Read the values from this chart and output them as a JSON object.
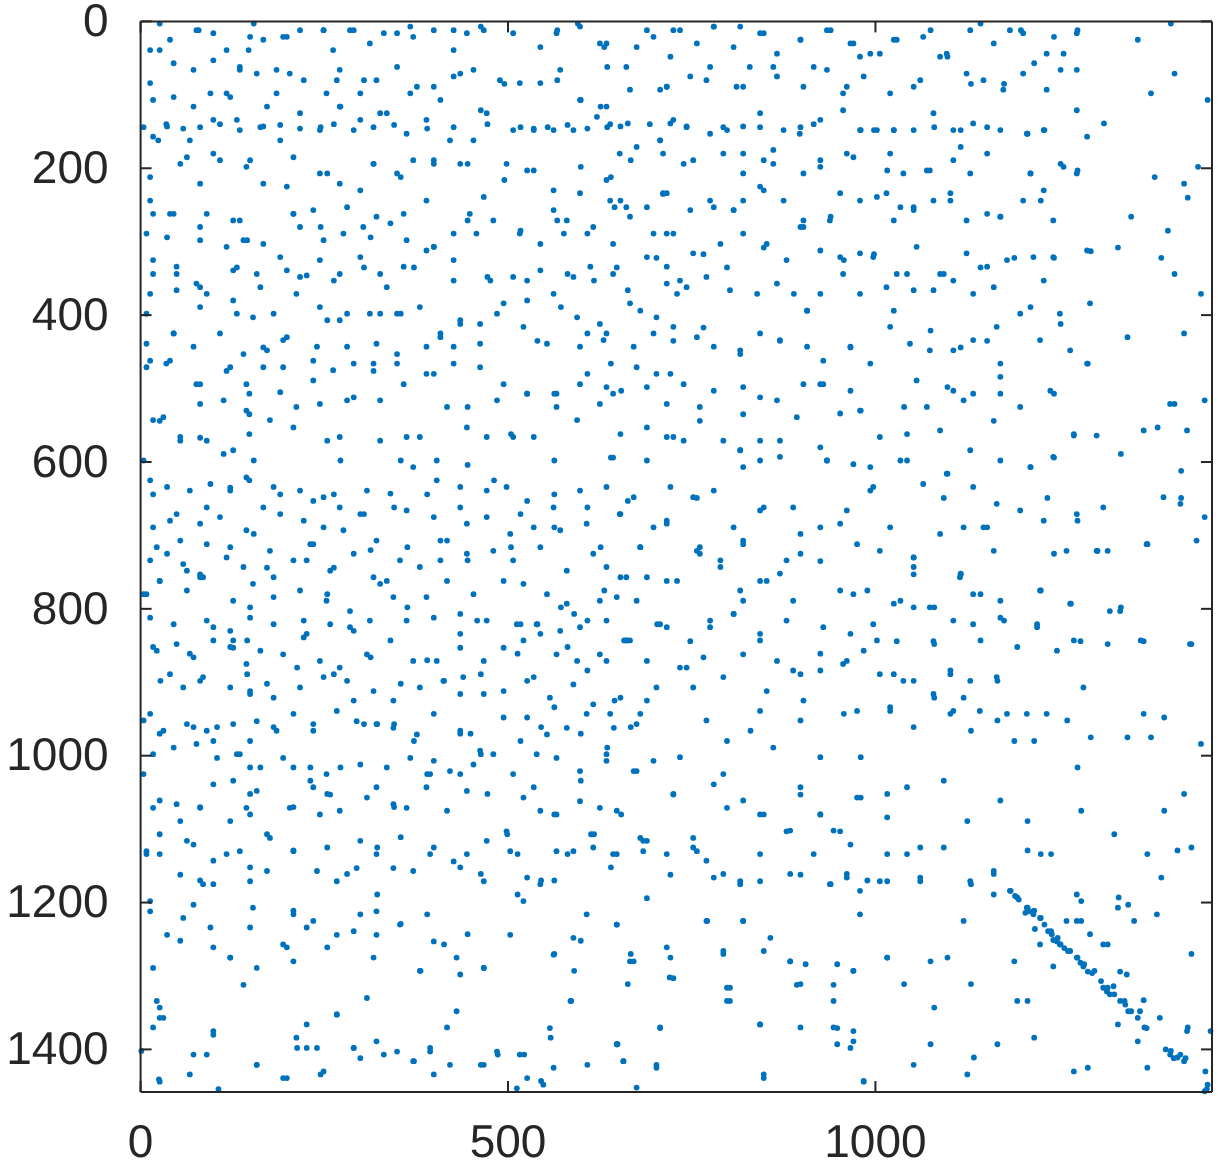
{
  "chart_data": {
    "type": "scatter",
    "color": "#0072bd",
    "marker": "circle",
    "xlim": [
      0,
      1458
    ],
    "ylim": [
      1458,
      0
    ],
    "xticks": [
      0,
      500,
      1000
    ],
    "yticks": [
      0,
      200,
      400,
      600,
      800,
      1000,
      1200,
      1400
    ],
    "x": [
      26,
      79,
      154,
      147,
      199,
      249,
      285,
      331,
      367,
      426,
      463,
      567,
      595,
      631,
      13,
      45,
      99,
      135,
      185,
      267,
      304,
      376,
      435,
      495,
      567,
      635,
      4,
      35,
      58,
      81,
      108,
      135,
      163,
      190,
      217,
      245,
      263,
      290,
      317,
      345,
      390,
      426,
      472,
      517,
      535,
      554,
      581,
      608,
      635,
      663,
      17,
      72,
      122,
      172,
      272,
      326,
      408,
      463,
      599,
      626,
      24,
      63,
      99,
      149,
      208,
      254,
      317,
      354,
      399,
      445,
      495,
      535,
      599,
      640,
      667,
      13,
      40,
      81,
      126,
      145,
      208,
      245,
      281,
      313,
      358,
      399,
      445,
      517,
      567,
      608,
      645,
      17,
      49,
      81,
      131,
      163,
      199,
      226,
      263,
      304,
      335,
      372,
      426,
      472,
      526,
      581,
      617,
      663,
      8,
      45,
      81,
      131,
      167,
      199,
      254,
      281,
      326,
      354,
      408,
      435,
      485,
      540,
      572,
      608,
      640,
      8,
      35,
      81,
      117,
      148,
      148,
      190,
      235,
      281,
      317,
      358,
      399,
      445,
      485,
      526,
      563,
      608,
      654,
      4,
      26,
      54,
      81,
      113,
      148,
      154,
      208,
      254,
      272,
      326,
      354,
      403,
      445,
      504,
      563,
      640,
      17,
      49,
      90,
      122,
      148,
      190,
      235,
      263,
      304,
      345,
      390,
      435,
      481,
      517,
      563,
      608,
      663,
      22,
      54,
      81,
      122,
      154,
      172,
      231,
      263,
      313,
      363,
      408,
      445,
      504,
      563,
      626,
      634,
      689,
      734,
      780,
      816,
      848,
      898,
      939,
      970,
      1025,
      1075,
      1143,
      1198,
      1243,
      1275,
      1357,
      1402,
      661,
      716,
      770,
      820,
      861,
      916,
      961,
      993,
      1052,
      1098,
      1130,
      1175,
      1216,
      1252,
      1375,
      1407,
      1452,
      639,
      693,
      743,
      793,
      843,
      898,
      916,
      980,
      998,
      1025,
      1080,
      1116,
      1152,
      1207,
      1230,
      1311,
      652,
      707,
      752,
      820,
      861,
      925,
      970,
      1016,
      1070,
      1116,
      1152,
      1211,
      1252,
      1275,
      1380,
      1420,
      1439,
      639,
      661,
      711,
      775,
      807,
      848,
      898,
      939,
      1002,
      1025,
      1052,
      1102,
      1170,
      1225,
      1348,
      1398,
      1425,
      648,
      702,
      734,
      766,
      798,
      848,
      889,
      957,
      998,
      1043,
      1093,
      1143,
      1189,
      1243,
      1293,
      1330,
      1389,
      1407,
      1443,
      634,
      680,
      725,
      766,
      816,
      870,
      907,
      966,
      1025,
      1075,
      1116,
      1152,
      1211,
      1252,
      1289,
      1343,
      1420,
      643,
      689,
      716,
      761,
      820,
      866,
      925,
      980,
      1039,
      1098,
      1120,
      1170,
      1243,
      1270,
      1384,
      1407,
      1448,
      643,
      689,
      739,
      816,
      843,
      870,
      934,
      993,
      1043,
      1098,
      1170,
      1211,
      1243,
      1334,
      1416,
      652,
      716,
      757,
      807,
      848,
      898,
      961,
      993,
      1052,
      1093,
      1120,
      1152,
      1234,
      1275,
      1302,
      1316,
      1370,
      1416,
      1448,
      661,
      761,
      820,
      925,
      1052,
      1116,
      1161,
      1243,
      4,
      26,
      63,
      81,
      99,
      122,
      145,
      149,
      181,
      226,
      254,
      285,
      335,
      363,
      408,
      435,
      458,
      517,
      540,
      572,
      590,
      608,
      631,
      658,
      17,
      40,
      67,
      81,
      104,
      126,
      145,
      149,
      172,
      213,
      226,
      263,
      290,
      313,
      354,
      390,
      413,
      435,
      463,
      513,
      535,
      581,
      608,
      645,
      4,
      26,
      72,
      99,
      131,
      149,
      149,
      181,
      208,
      235,
      272,
      304,
      322,
      345,
      372,
      399,
      435,
      449,
      463,
      517,
      545,
      563,
      599,
      635,
      667,
      4,
      26,
      54,
      81,
      126,
      149,
      149,
      208,
      231,
      254,
      308,
      345,
      390,
      435,
      472,
      499,
      535,
      563,
      599,
      617,
      654,
      8,
      26,
      63,
      99,
      149,
      172,
      208,
      254,
      281,
      322,
      354,
      394,
      435,
      463,
      513,
      545,
      581,
      613,
      640,
      13,
      54,
      81,
      99,
      122,
      149,
      208,
      226,
      254,
      299,
      322,
      354,
      390,
      413,
      445,
      513,
      563,
      586,
      599,
      667,
      17,
      99,
      158,
      199,
      208,
      308,
      267,
      317,
      381,
      435,
      467,
      563,
      590,
      663,
      17,
      26,
      31,
      99,
      72,
      90,
      158,
      199,
      213,
      226,
      245,
      290,
      331,
      372,
      394,
      417,
      463,
      486,
      522,
      545,
      558,
      608,
      649,
      106,
      25,
      1,
      634,
      680,
      716,
      761,
      789,
      820,
      843,
      870,
      898,
      952,
      989,
      1025,
      1052,
      1080,
      1116,
      1143,
      1175,
      1225,
      1266,
      1302,
      1334,
      1370,
      634,
      661,
      707,
      743,
      775,
      807,
      843,
      866,
      898,
      925,
      961,
      1002,
      1025,
      1052,
      1080,
      1102,
      1120,
      1143,
      1166,
      1193,
      1220,
      1270,
      1316,
      1361,
      1430,
      1443,
      639,
      675,
      702,
      734,
      770,
      798,
      830,
      861,
      898,
      925,
      957,
      980,
      1020,
      1052,
      1080,
      1102,
      1130,
      1166,
      1189,
      1216,
      1261,
      1293,
      1343,
      1375,
      1393,
      634,
      675,
      725,
      752,
      793,
      820,
      843,
      884,
      898,
      925,
      943,
      966,
      980,
      1016,
      1043,
      1061,
      1093,
      1125,
      1170,
      1207,
      1225,
      1275,
      1280,
      1325,
      1370,
      1393,
      1430,
      1420,
      643,
      684,
      716,
      770,
      793,
      816,
      843,
      884,
      916,
      939,
      961,
      989,
      1016,
      1043,
      1061,
      1093,
      1130,
      1161,
      1207,
      1239,
      1280,
      1330,
      1389,
      1411,
      648,
      666,
      716,
      720,
      770,
      793,
      820,
      857,
      884,
      898,
      948,
      970,
      1016,
      1039,
      1075,
      1098,
      1120,
      1130,
      1161,
      1189,
      1207,
      1280,
      1316,
      1352,
      1430,
      648,
      657,
      675,
      702,
      707,
      802,
      802,
      843,
      848,
      898,
      943,
      948,
      970,
      984,
      1052,
      1075,
      1080,
      1125,
      1134,
      1166,
      1193,
      1216,
      1270,
      1289,
      1330,
      1357,
      1370,
      1425,
      1456,
      1184,
      1193,
      1207,
      1216,
      1239,
      1248,
      1252,
      1275,
      1284,
      1298,
      1316,
      1325,
      1339,
      1348,
      1366,
      1402,
      1411,
      1420,
      1452,
      1448,
      1230,
      1262,
      1307,
      1357,
      1225,
      1183,
      1190,
      1195,
      1206,
      1210,
      1215,
      1204,
      1224,
      1217,
      1235,
      1240,
      1242,
      1247,
      1251,
      1257,
      1265,
      1274,
      1279,
      1283,
      1289,
      1295,
      1310,
      1315,
      1319,
      1324,
      1333,
      1340,
      1344,
      1369,
      1395,
      1401,
      1406,
      1415,
      1422,
      1449,
      1451,
      1224,
      1242,
      1260,
      1274,
      1292,
      1310,
      1333,
      1342,
      1365,
      1360,
      1387,
      1424,
      1383,
      1331,
      1344,
      1274,
      1161,
      1129,
      1061,
      1006,
      13,
      36,
      67,
      95,
      122,
      144,
      181,
      217,
      249,
      271,
      308,
      340,
      371,
      403,
      435,
      471,
      498,
      526,
      562,
      598,
      634,
      671,
      698,
      17,
      40,
      81,
      108,
      144,
      167,
      190,
      222,
      249,
      276,
      299,
      321,
      362,
      399,
      444,
      471,
      503,
      535,
      571,
      607,
      653,
      680,
      13,
      36,
      58,
      90,
      117,
      140,
      176,
      208,
      235,
      258,
      290,
      317,
      353,
      380,
      417,
      444,
      480,
      507,
      544,
      580,
      616,
      653,
      689,
      8,
      26,
      63,
      85,
      126,
      153,
      181,
      217,
      253,
      285,
      326,
      344,
      389,
      417,
      453,
      494,
      521,
      553,
      580,
      625,
      648,
      675,
      13,
      45,
      90,
      122,
      149,
      181,
      222,
      258,
      290,
      312,
      362,
      399,
      435,
      471,
      512,
      539,
      571,
      598,
      634,
      666,
      703,
      22,
      49,
      72,
      99,
      126,
      144,
      163,
      194,
      222,
      244,
      271,
      308,
      340,
      371,
      403,
      435,
      467,
      494,
      521,
      544,
      566,
      594,
      625,
      662,
      689,
      27,
      58,
      85,
      122,
      149,
      181,
      217,
      249,
      281,
      317,
      344,
      380,
      412,
      439,
      467,
      494,
      526,
      557,
      589,
      616,
      653,
      689,
      13,
      31,
      63,
      90,
      126,
      158,
      185,
      208,
      235,
      267,
      294,
      321,
      344,
      376,
      399,
      435,
      462,
      494,
      526,
      553,
      580,
      607,
      644,
      680,
      17,
      45,
      76,
      104,
      135,
      163,
      194,
      231,
      253,
      299,
      335,
      367,
      394,
      421,
      453,
      480,
      507,
      539,
      566,
      598,
      634,
      671,
      698,
      725,
      761,
      793,
      816,
      843,
      893,
      925,
      952,
      979,
      1006,
      1043,
      1070,
      1088,
      1129,
      1161,
      1197,
      1270,
      1301,
      1365,
      1401,
      1424,
      721,
      752,
      780,
      820,
      843,
      870,
      888,
      934,
      970,
      997,
      1034,
      1065,
      1097,
      1133,
      1165,
      1211,
      1242,
      1274,
      1310,
      1392,
      1415,
      716,
      757,
      789,
      820,
      852,
      879,
      925,
      952,
      975,
      1006,
      1020,
      1052,
      1088,
      1115,
      1147,
      1197,
      1229,
      1260,
      1301,
      1369,
      1437,
      730,
      816,
      888,
      970,
      1034,
      1074,
      1133,
      1170,
      1224,
      1265,
      1319,
      716,
      748,
      775,
      807,
      843,
      879,
      929,
      966,
      997,
      1029,
      1052,
      1079,
      1106,
      1133,
      1170,
      1220,
      1247,
      1279,
      1333,
      1365,
      1428,
      734,
      766,
      793,
      820,
      852,
      888,
      925,
      956,
      984,
      1006,
      1038,
      1079,
      1102,
      1129,
      1165,
      1179,
      1233,
      1283,
      1365,
      752,
      843,
      902,
      975,
      1020,
      1106,
      1142,
      1206,
      26,
      40,
      76,
      99,
      117,
      149,
      167,
      194,
      217,
      249,
      262,
      290,
      312,
      349,
      371,
      399,
      426,
      444,
      467,
      507,
      544,
      566,
      598,
      625,
      675,
      698,
      721,
      13,
      45,
      72,
      95,
      117,
      135,
      158,
      185,
      203,
      222,
      253,
      271,
      299,
      321,
      349,
      367,
      399,
      426,
      453,
      489,
      516,
      544,
      571,
      598,
      634,
      666,
      707,
      17,
      36,
      67,
      99,
      131,
      167,
      190,
      217,
      244,
      271,
      299,
      335,
      362,
      389,
      421,
      453,
      471,
      507,
      535,
      562,
      589,
      621,
      653,
      675,
      707,
      725,
      13,
      54,
      81,
      108,
      144,
      167,
      199,
      244,
      271,
      299,
      317,
      349,
      371,
      399,
      435,
      467,
      498,
      526,
      562,
      598,
      634,
      653,
      689,
      716,
      17,
      45,
      90,
      135,
      208,
      235,
      321,
      389,
      448,
      562,
      580,
      666,
      8,
      36,
      81,
      117,
      140,
      167,
      217,
      249,
      276,
      303,
      340,
      362,
      399,
      426,
      457,
      480,
      516,
      544,
      576,
      616,
      643,
      698,
      725,
      17,
      49,
      76,
      126,
      158,
      190,
      217,
      244,
      271,
      299,
      326,
      358,
      389,
      426,
      476,
      507,
      544,
      589,
      612,
      643,
      689,
      716,
      13,
      49,
      90,
      126,
      153,
      181,
      212,
      244,
      271,
      312,
      349,
      380,
      408,
      435,
      462,
      494,
      526,
      562,
      594,
      625,
      666,
      702,
      730,
      8,
      45,
      72,
      108,
      140,
      172,
      194,
      240,
      281,
      321,
      349,
      389,
      426,
      462,
      521,
      553,
      598,
      630,
      671,
      698,
      13,
      40,
      76,
      122,
      144,
      167,
      194,
      235,
      262,
      290,
      317,
      349,
      389,
      426,
      462,
      494,
      526,
      566,
      598,
      634,
      675,
      702,
      17,
      54,
      81,
      113,
      144,
      176,
      212,
      244,
      271,
      290,
      326,
      362,
      380,
      417,
      444,
      471,
      507,
      535,
      566,
      594,
      625,
      653,
      689,
      716,
      31,
      90,
      126,
      725,
      757,
      780,
      807,
      843,
      866,
      898,
      934,
      966,
      979,
      1006,
      1029,
      1065,
      1097,
      1129,
      1161,
      1183,
      1201,
      1233,
      1256,
      1274,
      716,
      748,
      775,
      811,
      829,
      866,
      902,
      934,
      956,
      984,
      1020,
      1061,
      1088,
      1124,
      1147,
      1174,
      1201,
      1233,
      1274,
      1274,
      721,
      743,
      775,
      798,
      820,
      843,
      875,
      897,
      925,
      956,
      979,
      1002,
      1025,
      1052,
      1079,
      1106,
      1133,
      1170,
      1206,
      1229,
      1288,
      711,
      739,
      793,
      820,
      848,
      861,
      902,
      925,
      961,
      1020,
      1038,
      1074,
      1106,
      1129,
      1211,
      1229,
      1256,
      1274,
      711,
      748,
      780,
      807,
      820,
      843,
      875,
      902,
      938,
      952,
      979,
      1015,
      1034,
      1052,
      1079,
      1102,
      1124,
      1152,
      1170,
      1201,
      1242,
      716,
      752,
      789,
      820,
      852,
      879,
      902,
      925,
      952,
      979,
      997,
      1029,
      1056,
      1088,
      1124,
      1152,
      1179,
      1215,
      1242,
      1288,
      716,
      743,
      770,
      802,
      839,
      866,
      907,
      925,
      956,
      979,
      1015,
      1052,
      1079,
      1106,
      1133,
      1161,
      1197,
      1229,
      1251,
      1292,
      725,
      757,
      780,
      816,
      843,
      870,
      907,
      929,
      966,
      993,
      1020,
      1047,
      1074,
      1106,
      1133,
      1165,
      1170,
      1224,
      1265,
      1288,
      721,
      739,
      780,
      820,
      843,
      902,
      929,
      966,
      1056,
      1106,
      1133,
      1170,
      1238,
      17,
      49,
      81,
      99,
      122,
      144,
      158,
      176,
      203,
      235,
      244,
      258,
      271,
      299,
      321,
      344,
      362,
      389,
      417,
      444,
      471,
      498,
      521,
      544,
      566,
      598,
      625,
      648,
      680,
      689,
      725,
      752,
      780,
      798,
      848,
      879,
      898,
      925,
      952,
      975,
      1016,
      8,
      26,
      54,
      72,
      85,
      117,
      135,
      149,
      172,
      208,
      240,
      267,
      294,
      321,
      344,
      371,
      399,
      426,
      444,
      467,
      503,
      526,
      544,
      566,
      589,
      616,
      648,
      684,
      721,
      757,
      780,
      816,
      843,
      898,
      938,
      961,
      979,
      1016,
      13,
      36,
      58,
      72,
      95,
      122,
      140,
      153,
      194,
      208,
      235,
      267,
      290,
      321,
      321,
      353,
      380,
      399,
      430,
      467,
      503,
      521,
      562,
      589,
      607,
      648,
      671,
      689,
      721,
      725,
      771,
      793,
      820,
      848,
      884,
      905,
      943,
      970,
      979,
      1016,
      22,
      26,
      99,
      212,
      226,
      240,
      267,
      290,
      321,
      349,
      371,
      394,
      421,
      430,
      467,
      485,
      516,
      526,
      548,
      557,
      562,
      585,
      648,
      657,
      702,
      707,
      798,
      798,
      843,
      848,
      893,
      943,
      948,
      970,
      966,
      984,
      67,
      26,
      158,
      194,
      249,
      299,
      399,
      512
    ],
    "values": [
      3,
      12,
      3,
      39,
      21,
      12,
      12,
      16,
      7,
      12,
      7,
      12,
      3,
      35,
      39,
      57,
      53,
      66,
      66,
      80,
      80,
      89,
      71,
      85,
      80,
      62,
      144,
      140,
      146,
      144,
      140,
      148,
      144,
      141,
      146,
      144,
      140,
      148,
      144,
      141,
      146,
      144,
      140,
      144,
      146,
      144,
      141,
      146,
      144,
      139,
      107,
      116,
      103,
      116,
      116,
      125,
      107,
      121,
      107,
      116,
      162,
      185,
      180,
      189,
      185,
      207,
      194,
      212,
      189,
      194,
      216,
      203,
      198,
      212,
      189,
      244,
      262,
      280,
      271,
      298,
      262,
      280,
      253,
      294,
      262,
      307,
      271,
      285,
      271,
      289,
      253,
      325,
      344,
      362,
      335,
      362,
      339,
      346,
      353,
      335,
      362,
      335,
      353,
      348,
      353,
      344,
      353,
      366,
      398,
      425,
      389,
      398,
      444,
      430,
      407,
      398,
      398,
      398,
      430,
      412,
      398,
      435,
      389,
      425,
      466,
      471,
      466,
      494,
      476,
      507,
      535,
      505,
      489,
      516,
      476,
      494,
      480,
      525,
      516,
      507,
      507,
      480,
      503,
      598,
      544,
      571,
      567,
      589,
      562,
      598,
      553,
      571,
      598,
      571,
      598,
      598,
      604,
      562,
      598,
      594,
      644,
      671,
      662,
      635,
      625,
      644,
      653,
      644,
      671,
      662,
      644,
      662,
      625,
      671,
      644,
      662,
      653,
      716,
      707,
      753,
      716,
      698,
      744,
      712,
      744,
      720,
      716,
      707,
      734,
      716,
      689,
      716,
      30,
      12,
      12,
      7,
      7,
      16,
      25,
      12,
      30,
      25,
      12,
      3,
      12,
      21,
      12,
      25,
      3,
      62,
      89,
      80,
      89,
      62,
      62,
      89,
      44,
      89,
      48,
      85,
      85,
      57,
      66,
      98,
      71,
      107,
      140,
      140,
      144,
      144,
      144,
      144,
      140,
      148,
      148,
      148,
      144,
      148,
      144,
      153,
      148,
      139,
      180,
      162,
      189,
      180,
      194,
      189,
      185,
      203,
      203,
      171,
      180,
      207,
      194,
      203,
      212,
      221,
      198,
      244,
      253,
      235,
      244,
      257,
      230,
      280,
      266,
      239,
      271,
      253,
      244,
      266,
      244,
      266,
      285,
      240,
      335,
      322,
      353,
      317,
      335,
      308,
      371,
      325,
      317,
      344,
      344,
      335,
      322,
      322,
      313,
      308,
      322,
      344,
      371,
      425,
      394,
      435,
      417,
      448,
      435,
      394,
      444,
      394,
      421,
      444,
      435,
      389,
      412,
      466,
      430,
      425,
      507,
      498,
      521,
      544,
      535,
      516,
      494,
      530,
      525,
      498,
      516,
      507,
      507,
      562,
      553,
      521,
      516,
      594,
      598,
      571,
      584,
      598,
      571,
      598,
      607,
      598,
      616,
      598,
      607,
      594,
      589,
      612,
      671,
      680,
      649,
      689,
      662,
      698,
      666,
      639,
      730,
      649,
      689,
      689,
      649,
      680,
      721,
      721,
      712,
      649,
      675,
      757,
      725,
      712,
      735,
      753,
      753,
      721,
      725,
      780,
      762,
      748,
      757,
      825,
      852,
      843,
      798,
      757,
      734,
      780,
      825,
      762,
      798,
      734,
      834,
      816,
      821,
      821,
      798,
      807,
      816,
      775,
      843,
      852,
      889,
      861,
      898,
      961,
      843,
      889,
      916,
      902,
      880,
      834,
      889,
      925,
      866,
      902,
      870,
      898,
      916,
      889,
      861,
      893,
      852,
      884,
      925,
      952,
      970,
      961,
      980,
      998,
      980,
      1016,
      961,
      1016,
      966,
      1016,
      957,
      957,
      957,
      980,
      1007,
      970,
      970,
      998,
      980,
      961,
      934,
      970,
      989,
      961,
      1025,
      1061,
      1089,
      1070,
      1034,
      1052,
      1080,
      1070,
      1034,
      1052,
      1057,
      1070,
      1025,
      1025,
      1052,
      1107,
      1043,
      1080,
      1034,
      1107,
      1080,
      1134,
      1107,
      1116,
      1143,
      1152,
      1107,
      1129,
      1125,
      1161,
      1125,
      1111,
      1134,
      1152,
      1161,
      1134,
      1170,
      1134,
      1107,
      1152,
      1198,
      1252,
      1170,
      1175,
      1275,
      1234,
      1211,
      1234,
      1261,
      1216,
      1189,
      1229,
      1216,
      1257,
      1243,
      1189,
      1170,
      1334,
      1252,
      1270,
      1289,
      1261,
      1289,
      1261,
      1280,
      1330,
      1352,
      1275,
      1293,
      1298,
      1289,
      1270,
      1293,
      1311,
      1370,
      1343,
      1357,
      1375,
      1407,
      1407,
      1421,
      1439,
      1398,
      1366,
      1434,
      1398,
      1407,
      1416,
      1398,
      1370,
      1421,
      1407,
      1407,
      1443,
      1384,
      1421,
      1393,
      1454,
      1441,
      1402,
      743,
      716,
      762,
      716,
      743,
      789,
      762,
      752,
      725,
      775,
      775,
      793,
      743,
      798,
      752,
      780,
      816,
      775,
      793,
      721,
      798,
      712,
      871,
      843,
      821,
      880,
      825,
      807,
      843,
      871,
      889,
      861,
      871,
      843,
      889,
      898,
      848,
      884,
      921,
      843,
      898,
      852,
      821,
      843,
      848,
      843,
      848,
      984,
      943,
      957,
      907,
      1002,
      952,
      980,
      966,
      989,
      952,
      1002,
      943,
      1002,
      934,
      961,
      921,
      943,
      966,
      952,
      980,
      980,
      952,
      975,
      975,
      975,
      948,
      1007,
      1021,
      1052,
      1125,
      1025,
      1061,
      1080,
      1102,
      1043,
      1080,
      1102,
      1121,
      1057,
      1052,
      1043,
      1125,
      1034,
      1089,
      1061,
      1089,
      1134,
      1016,
      1075,
      1107,
      1134,
      1075,
      1125,
      1052,
      1134,
      1116,
      1134,
      1143,
      1161,
      1175,
      1134,
      1161,
      1134,
      1175,
      1161,
      1170,
      1134,
      1134,
      1166,
      1125,
      1175,
      1161,
      1129,
      1134,
      1198,
      1207,
      1166,
      1129,
      1230,
      1280,
      1261,
      1302,
      1225,
      1270,
      1225,
      1248,
      1280,
      1311,
      1284,
      1293,
      1275,
      1311,
      1280,
      1275,
      1225,
      1311,
      1189,
      1280,
      1334,
      1225,
      1257,
      1225,
      1270,
      1393,
      1416,
      1452,
      1421,
      1370,
      1316,
      1334,
      1366,
      1439,
      1370,
      1370,
      1393,
      1389,
      1443,
      1421,
      1393,
      1343,
      1434,
      1411,
      1393,
      1334,
      1384,
      1430,
      1425,
      1366,
      1389,
      1425,
      1370,
      1375,
      1184,
      1193,
      1207,
      1211,
      1239,
      1248,
      1257,
      1275,
      1284,
      1293,
      1316,
      1325,
      1334,
      1348,
      1370,
      1402,
      1411,
      1416,
      1448,
      1457,
      1230,
      1266,
      1307,
      1357,
      1221,
      1184,
      1191,
      1196,
      1207,
      1212,
      1216,
      1214,
      1221,
      1236,
      1239,
      1243,
      1251,
      1253,
      1257,
      1262,
      1266,
      1275,
      1282,
      1287,
      1294,
      1296,
      1316,
      1321,
      1325,
      1314,
      1334,
      1339,
      1348,
      1371,
      1400,
      1407,
      1412,
      1407,
      1412,
      1430,
      1454,
      1257,
      1287,
      1225,
      1225,
      1243,
      1257,
      1294,
      1298,
      1333,
      1348,
      1357,
      1375,
      1216,
      1193,
      1203,
      1189,
      1157,
      1171,
      1171,
      1171,
      625,
      634,
      639,
      630,
      639,
      621,
      634,
      639,
      648,
      662,
      639,
      643,
      607,
      625,
      634,
      639,
      634,
      653,
      662,
      639,
      634,
      648,
      689,
      689,
      680,
      684,
      675,
      693,
      662,
      671,
      680,
      689,
      693,
      671,
      707,
      666,
      675,
      684,
      675,
      698,
      689,
      693,
      684,
      671,
      716,
      734,
      725,
      739,
      712,
      730,
      743,
      721,
      734,
      712,
      748,
      725,
      757,
      734,
      743,
      707,
      725,
      721,
      734,
      716,
      748,
      725,
      757,
      757,
      780,
      762,
      775,
      757,
      789,
      766,
      784,
      775,
      789,
      803,
      766,
      784,
      784,
      762,
      780,
      762,
      766,
      780,
      793,
      789,
      784,
      789,
      812,
      821,
      816,
      830,
      812,
      821,
      816,
      821,
      830,
      816,
      816,
      812,
      807,
      816,
      821,
      821,
      830,
      825,
      816,
      843,
      821,
      857,
      848,
      866,
      843,
      853,
      875,
      857,
      862,
      839,
      871,
      880,
      862,
      843,
      871,
      871,
      853,
      871,
      853,
      843,
      834,
      862,
      871,
      862,
      843,
      871,
      898,
      907,
      893,
      907,
      912,
      921,
      907,
      893,
      898,
      912,
      925,
      907,
      898,
      893,
      916,
      912,
      898,
      921,
      903,
      930,
      921,
      925,
      943,
      966,
      957,
      966,
      957,
      953,
      966,
      943,
      957,
      939,
      953,
      957,
      962,
      971,
      943,
      966,
      993,
      948,
      948,
      971,
      962,
      943,
      962,
      943,
      998,
      989,
      984,
      1003,
      998,
      1016,
      1003,
      1016,
      1025,
      1012,
      1016,
      1003,
      1025,
      1021,
      1012,
      998,
      1025,
      998,
      1003,
      1021,
      998,
      1021,
      1007,
      566,
      525,
      571,
      584,
      571,
      539,
      580,
      534,
      530,
      566,
      562,
      525,
      557,
      584,
      544,
      525,
      564,
      564,
      557,
      521,
      557,
      634,
      648,
      639,
      607,
      666,
      593,
      662,
      598,
      603,
      634,
      598,
      630,
      616,
      634,
      657,
      607,
      593,
      671,
      662,
      648,
      657,
      684,
      721,
      734,
      707,
      762,
      734,
      689,
      684,
      712,
      721,
      689,
      730,
      698,
      757,
      689,
      666,
      680,
      721,
      721,
      712,
      707,
      762,
      775,
      789,
      780,
      789,
      798,
      780,
      789,
      775,
      793,
      803,
      825,
      844,
      816,
      807,
      834,
      816,
      825,
      834,
      821,
      844,
      798,
      844,
      816,
      821,
      812,
      825,
      857,
      844,
      803,
      844,
      848,
      880,
      866,
      893,
      862,
      912,
      884,
      884,
      875,
      857,
      889,
      898,
      916,
      889,
      898,
      893,
      943,
      943,
      907,
      943,
      907,
      939,
      925,
      939,
      939,
      939,
      939,
      943,
      39,
      25,
      12,
      16,
      39,
      21,
      25,
      21,
      12,
      12,
      39,
      12,
      30,
      16,
      21,
      12,
      39,
      16,
      12,
      16,
      35,
      16,
      7,
      30,
      35,
      21,
      48,
      84,
      103,
      66,
      98,
      98,
      62,
      71,
      98,
      71,
      80,
      98,
      66,
      98,
      80,
      62,
      98,
      89,
      75,
      66,
      80,
      84,
      84,
      66,
      107,
      116,
      93,
      93,
      157,
      143,
      162,
      134,
      134,
      143,
      162,
      125,
      148,
      116,
      134,
      125,
      153,
      134,
      162,
      162,
      125,
      148,
      148,
      148,
      148,
      130,
      143,
      171,
      162,
      134,
      212,
      194,
      221,
      189,
      198,
      221,
      225,
      207,
      221,
      230,
      194,
      207,
      189,
      194,
      194,
      239,
      194,
      203,
      230,
      234,
      216,
      244,
      253,
      234,
      262,
      262,
      262,
      271,
      262,
      257,
      266,
      244,
      262,
      257,
      271,
      266,
      289,
      294,
      298,
      307,
      298,
      303,
      280,
      298,
      289,
      280,
      275,
      298,
      307,
      289,
      289,
      271,
      289,
      303,
      289,
      280,
      303,
      289,
      289,
      344,
      334,
      357,
      339,
      344,
      321,
      348,
      325,
      344,
      321,
      344,
      334,
      312,
      325,
      353,
      348,
      339,
      348,
      334,
      344,
      321,
      334,
      371,
      366,
      371,
      380,
      403,
      398,
      371,
      389,
      407,
      398,
      398,
      389,
      425,
      407,
      412,
      384,
      380,
      371,
      403,
      412,
      384,
      403,
      371,
      439,
      425,
      443,
      425,
      453,
      448,
      434,
      443,
      443,
      439,
      453,
      443,
      443,
      439,
      416,
      439,
      443,
      434,
      443,
      425,
      462,
      462,
      494,
      471,
      494,
      471,
      471,
      462,
      475,
      466,
      466,
      466,
      480,
      466,
      471,
      494,
      507,
      507,
      494,
      498,
      471,
      480,
      543,
      566,
      521,
      516,
      530,
      543,
      525,
      521,
      566,
      512,
      516,
      566,
      566,
      525,
      553,
      566,
      566,
      566,
      525,
      543,
      521,
      562,
      553,
      566,
      539,
      571,
      584,
      12,
      30,
      7,
      35,
      16,
      44,
      25,
      12,
      30,
      48,
      44,
      25,
      21,
      44,
      12,
      30,
      12,
      16,
      44,
      44,
      16,
      89,
      75,
      62,
      89,
      62,
      75,
      89,
      66,
      98,
      75,
      98,
      80,
      48,
      71,
      80,
      93,
      71,
      93,
      121,
      66,
      139,
      143,
      153,
      148,
      143,
      125,
      148,
      153,
      134,
      121,
      148,
      148,
      148,
      148,
      125,
      148,
      139,
      148,
      153,
      148,
      157,
      180,
      194,
      180,
      207,
      189,
      175,
      207,
      198,
      180,
      180,
      207,
      203,
      189,
      207,
      207,
      230,
      198,
      207,
      234,
      257,
      253,
      257,
      244,
      225,
      244,
      271,
      271,
      234,
      244,
      234,
      253,
      257,
      244,
      234,
      271,
      262,
      266,
      244,
      271,
      289,
      316,
      303,
      289,
      303,
      325,
      280,
      312,
      321,
      316,
      321,
      344,
      307,
      344,
      316,
      334,
      325,
      321,
      321,
      312,
      357,
      362,
      348,
      366,
      371,
      357,
      394,
      371,
      344,
      371,
      362,
      366,
      366,
      353,
      371,
      362,
      398,
      353,
      398,
      384,
      416,
      430,
      443,
      453,
      425,
      434,
      443,
      462,
      443,
      466,
      416,
      439,
      448,
      448,
      434,
      416,
      466,
      434,
      448,
      466,
      480,
      494,
      503,
      498,
      512,
      494,
      494,
      503,
      489,
      503,
      507,
      484,
      503,
      1071,
      1066,
      1071,
      1039,
      1089,
      1071,
      1048,
      1112,
      1071,
      1043,
      1080,
      1053,
      1075,
      1116,
      1043,
      1066,
      1071,
      1043,
      1075,
      1048,
      1116,
      1103,
      1057,
      1075,
      1080,
      1062,
      1071,
      1075,
      1112,
      1116,
      1053,
      1112,
      1039,
      1071,
      1080,
      1103,
      1053,
      1080,
      1103,
      1057,
      1084,
      1130,
      1134,
      1162,
      1121,
      1175,
      1134,
      1130,
      1171,
      1157,
      1130,
      1157,
      1171,
      1153,
      1134,
      1153,
      1157,
      1125,
      1144,
      1134,
      1171,
      1130,
      1166,
      1175,
      1130,
      1130,
      1125,
      1134,
      1130,
      1162,
      1130,
      1166,
      1171,
      1171,
      1162,
      1175,
      1166,
      1184,
      1171,
      1212,
      1244,
      1221,
      1203,
      1234,
      1275,
      1312,
      1207,
      1257,
      1216,
      1225,
      1244,
      1239,
      1212,
      1244,
      1230,
      1293,
      1253,
      1275,
      1289,
      1244,
      1198,
      1271,
      1248,
      1216,
      1230,
      1280,
      1194,
      1275,
      1303,
      1225,
      1266,
      1225,
      1266,
      1280,
      1284,
      1312,
      1293,
      1216,
      1275,
      1334,
      1357,
      1380,
      1384,
      1398,
      1398,
      1353,
      1398,
      1389,
      1403,
      1416,
      1403,
      1421,
      1348,
      1421,
      1403,
      1407,
      1439,
      1448,
      1371,
      1425,
      1334,
      1393,
      1416,
      1425,
      1371,
      1316,
      1334,
      1366,
      1434,
      1312,
      1334,
      1371,
      1375,
      1398,
      1444,
      1434,
      1444,
      1421,
      1439,
      1430,
      1412,
      1434,
      1453
    ]
  }
}
